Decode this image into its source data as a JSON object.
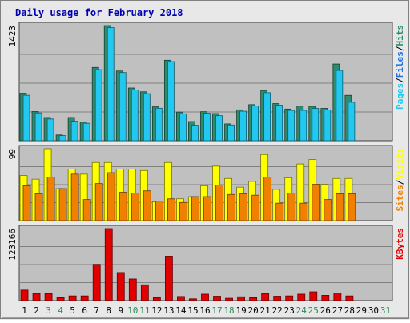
{
  "chart_data": {
    "type": "bar",
    "title": "Daily usage for February 2018",
    "days": [
      "1",
      "2",
      "3",
      "4",
      "5",
      "6",
      "7",
      "8",
      "9",
      "10",
      "11",
      "12",
      "13",
      "14",
      "15",
      "16",
      "17",
      "18",
      "19",
      "20",
      "21",
      "22",
      "23",
      "24",
      "25",
      "26",
      "27",
      "28",
      "29",
      "30",
      "31"
    ],
    "weekend_days": [
      "3",
      "4",
      "10",
      "11",
      "17",
      "18",
      "24",
      "25",
      "31"
    ],
    "panels": [
      {
        "name": "top",
        "max_label": "1423",
        "ymax": 1423,
        "series": [
          {
            "name": "Hits",
            "color": "#2e8b6e",
            "values": [
              587,
              361,
              287,
              71,
              287,
              230,
              906,
              1423,
              862,
              652,
              605,
              419,
              995,
              354,
              237,
              359,
              336,
              208,
              382,
              446,
              621,
              459,
              392,
              428,
              425,
              400,
              948,
              561,
              0,
              0,
              0
            ]
          },
          {
            "name": "Files",
            "color": "#1e6fe0",
            "values": [
              0,
              0,
              0,
              0,
              0,
              0,
              0,
              0,
              0,
              0,
              0,
              0,
              0,
              0,
              0,
              0,
              0,
              0,
              0,
              0,
              0,
              0,
              0,
              0,
              0,
              0,
              0,
              0,
              0,
              0,
              0
            ]
          },
          {
            "name": "Pages",
            "color": "#22c8f0",
            "values": [
              562,
              344,
              268,
              63,
              241,
              216,
              879,
              1397,
              843,
              627,
              582,
              402,
              978,
              333,
              192,
              340,
              310,
              195,
              365,
              430,
              594,
              439,
              375,
              376,
              400,
              380,
              869,
              475,
              0,
              0,
              0
            ]
          }
        ]
      },
      {
        "name": "middle",
        "max_label": "99",
        "ymax": 99,
        "series": [
          {
            "name": "Visits",
            "color": "#ffff00",
            "values": [
              62,
              57,
              99,
              44,
              71,
              64,
              80,
              80,
              71,
              71,
              69,
              26,
              80,
              30,
              33,
              48,
              75,
              58,
              46,
              54,
              91,
              43,
              59,
              78,
              84,
              50,
              58,
              58,
              0,
              0,
              0
            ]
          },
          {
            "name": "Sites",
            "color": "#f08000",
            "values": [
              48,
              37,
              60,
              44,
              64,
              29,
              51,
              66,
              39,
              38,
              41,
              27,
              30,
              25,
              33,
              33,
              49,
              36,
              37,
              35,
              60,
              24,
              38,
              24,
              50,
              29,
              37,
              37,
              0,
              0,
              0
            ]
          }
        ]
      },
      {
        "name": "bottom",
        "max_label": "123166",
        "ymax": 123166,
        "series": [
          {
            "name": "KBytes",
            "color": "#e00000",
            "values": [
              18000,
              12000,
              12000,
              5000,
              8000,
              8000,
              62000,
              123166,
              48000,
              37000,
              27000,
              5000,
              76000,
              7000,
              3000,
              11000,
              7500,
              4000,
              6500,
              5000,
              12000,
              7500,
              8000,
              11000,
              15000,
              9000,
              13000,
              8000,
              0,
              0,
              0
            ]
          }
        ]
      }
    ],
    "legends": {
      "top": [
        {
          "text": "Pages",
          "color": "#22c8f0"
        },
        {
          "text": "/",
          "color": "#000000"
        },
        {
          "text": "Files",
          "color": "#1e6fe0"
        },
        {
          "text": "/",
          "color": "#000000"
        },
        {
          "text": "Hits",
          "color": "#2e8b6e"
        }
      ],
      "middle": [
        {
          "text": "Sites",
          "color": "#f08000"
        },
        {
          "text": "/",
          "color": "#000000"
        },
        {
          "text": "Visits",
          "color": "#ffff00"
        }
      ],
      "bottom": [
        {
          "text": "KBytes",
          "color": "#e00000"
        }
      ]
    },
    "colors": {
      "title": "#0000b0",
      "panel_bg": "#c0c0c0",
      "frame_bg": "#e8e8e8",
      "weekday_label": "#000000",
      "weekend_label": "#2e8b57"
    }
  }
}
